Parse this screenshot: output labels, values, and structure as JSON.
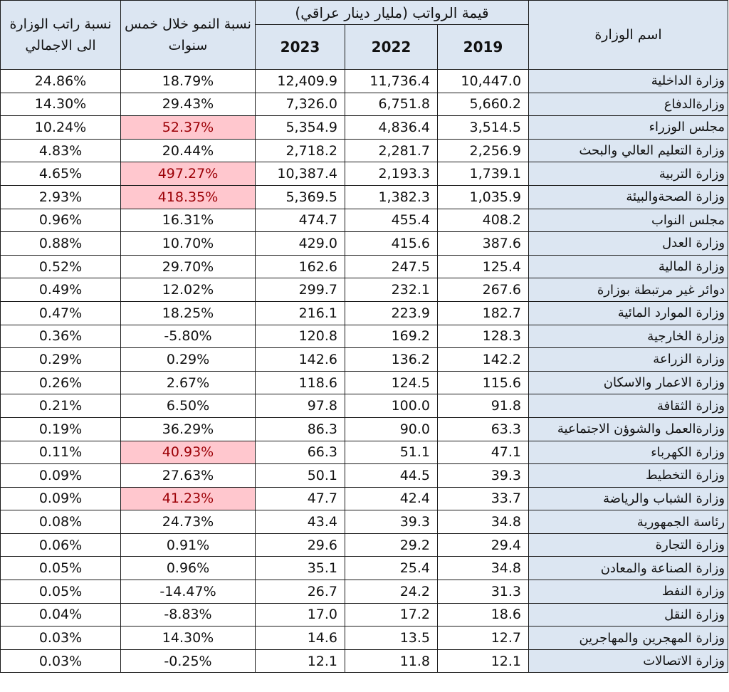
{
  "headers": {
    "share": "نسبة راتب الوزارة الى الاجمالي",
    "growth": "نسبة النمو خلال خمس سنوات",
    "salary_group": "قيمة الرواتب (مليار دينار عراقي)",
    "ministry": "اسم الوزارة",
    "y2023": "2023",
    "y2022": "2022",
    "y2019": "2019"
  },
  "highlight_color": "#ffc7ce",
  "highlight_text_color": "#9c0006",
  "header_color": "#dce6f2",
  "chart_data": {
    "type": "table",
    "columns": [
      "اسم الوزارة",
      "2019",
      "2022",
      "2023",
      "نسبة النمو خلال خمس سنوات",
      "نسبة راتب الوزارة الى الاجمالي"
    ],
    "rows": [
      {
        "ministry": "وزارة الداخلية",
        "y2019": "10,447.0",
        "y2022": "11,736.4",
        "y2023": "12,409.9",
        "growth": "18.79%",
        "share": "24.86%",
        "hl": false
      },
      {
        "ministry": "وزارةالدفاع",
        "y2019": "5,660.2",
        "y2022": "6,751.8",
        "y2023": "7,326.0",
        "growth": "29.43%",
        "share": "14.30%",
        "hl": false
      },
      {
        "ministry": "مجلس الوزراء",
        "y2019": "3,514.5",
        "y2022": "4,836.4",
        "y2023": "5,354.9",
        "growth": "52.37%",
        "share": "10.24%",
        "hl": true
      },
      {
        "ministry": "وزارة التعليم العالي والبحث",
        "y2019": "2,256.9",
        "y2022": "2,281.7",
        "y2023": "2,718.2",
        "growth": "20.44%",
        "share": "4.83%",
        "hl": false
      },
      {
        "ministry": "وزارة التربية",
        "y2019": "1,739.1",
        "y2022": "2,193.3",
        "y2023": "10,387.4",
        "growth": "497.27%",
        "share": "4.65%",
        "hl": true
      },
      {
        "ministry": "وزارة الصحةوالبيئة",
        "y2019": "1,035.9",
        "y2022": "1,382.3",
        "y2023": "5,369.5",
        "growth": "418.35%",
        "share": "2.93%",
        "hl": true
      },
      {
        "ministry": "مجلس النواب",
        "y2019": "408.2",
        "y2022": "455.4",
        "y2023": "474.7",
        "growth": "16.31%",
        "share": "0.96%",
        "hl": false
      },
      {
        "ministry": "وزارة العدل",
        "y2019": "387.6",
        "y2022": "415.6",
        "y2023": "429.0",
        "growth": "10.70%",
        "share": "0.88%",
        "hl": false
      },
      {
        "ministry": "وزارة المالية",
        "y2019": "125.4",
        "y2022": "247.5",
        "y2023": "162.6",
        "growth": "29.70%",
        "share": "0.52%",
        "hl": false
      },
      {
        "ministry": "دوائر غير مرتبطة بوزارة",
        "y2019": "267.6",
        "y2022": "232.1",
        "y2023": "299.7",
        "growth": "12.02%",
        "share": "0.49%",
        "hl": false
      },
      {
        "ministry": "وزارة الموارد المائية",
        "y2019": "182.7",
        "y2022": "223.9",
        "y2023": "216.1",
        "growth": "18.25%",
        "share": "0.47%",
        "hl": false
      },
      {
        "ministry": "وزارة الخارجية",
        "y2019": "128.3",
        "y2022": "169.2",
        "y2023": "120.8",
        "growth": "-5.80%",
        "share": "0.36%",
        "hl": false
      },
      {
        "ministry": "وزارة الزراعة",
        "y2019": "142.2",
        "y2022": "136.2",
        "y2023": "142.6",
        "growth": "0.29%",
        "share": "0.29%",
        "hl": false
      },
      {
        "ministry": "وزارة الاعمار والاسكان",
        "y2019": "115.6",
        "y2022": "124.5",
        "y2023": "118.6",
        "growth": "2.67%",
        "share": "0.26%",
        "hl": false
      },
      {
        "ministry": "وزارة الثقافة",
        "y2019": "91.8",
        "y2022": "100.0",
        "y2023": "97.8",
        "growth": "6.50%",
        "share": "0.21%",
        "hl": false
      },
      {
        "ministry": "وزارةالعمل والشوؤن الاجتماعية",
        "y2019": "63.3",
        "y2022": "90.0",
        "y2023": "86.3",
        "growth": "36.29%",
        "share": "0.19%",
        "hl": false
      },
      {
        "ministry": "وزارة الكهرباء",
        "y2019": "47.1",
        "y2022": "51.1",
        "y2023": "66.3",
        "growth": "40.93%",
        "share": "0.11%",
        "hl": true
      },
      {
        "ministry": "وزارة التخطيط",
        "y2019": "39.3",
        "y2022": "44.5",
        "y2023": "50.1",
        "growth": "27.63%",
        "share": "0.09%",
        "hl": false
      },
      {
        "ministry": "وزارة الشباب والرياضة",
        "y2019": "33.7",
        "y2022": "42.4",
        "y2023": "47.7",
        "growth": "41.23%",
        "share": "0.09%",
        "hl": true
      },
      {
        "ministry": "رئاسة الجمهورية",
        "y2019": "34.8",
        "y2022": "39.3",
        "y2023": "43.4",
        "growth": "24.73%",
        "share": "0.08%",
        "hl": false
      },
      {
        "ministry": "وزارة التجارة",
        "y2019": "29.4",
        "y2022": "29.2",
        "y2023": "29.6",
        "growth": "0.91%",
        "share": "0.06%",
        "hl": false
      },
      {
        "ministry": "وزارة الصناعة والمعادن",
        "y2019": "34.8",
        "y2022": "25.4",
        "y2023": "35.1",
        "growth": "0.96%",
        "share": "0.05%",
        "hl": false
      },
      {
        "ministry": "وزارة النفط",
        "y2019": "31.3",
        "y2022": "24.2",
        "y2023": "26.7",
        "growth": "-14.47%",
        "share": "0.05%",
        "hl": false
      },
      {
        "ministry": "وزارة النقل",
        "y2019": "18.6",
        "y2022": "17.2",
        "y2023": "17.0",
        "growth": "-8.83%",
        "share": "0.04%",
        "hl": false
      },
      {
        "ministry": "وزارة المهجرين والمهاجرين",
        "y2019": "12.7",
        "y2022": "13.5",
        "y2023": "14.6",
        "growth": "14.30%",
        "share": "0.03%",
        "hl": false
      },
      {
        "ministry": "وزارة الاتصالات",
        "y2019": "12.1",
        "y2022": "11.8",
        "y2023": "12.1",
        "growth": "-0.25%",
        "share": "0.03%",
        "hl": false
      }
    ]
  }
}
